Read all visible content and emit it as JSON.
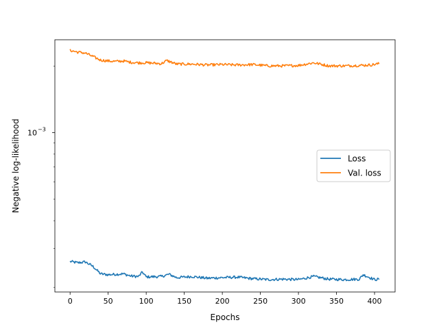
{
  "chart_data": {
    "type": "line",
    "title": "",
    "xlabel": "Epochs",
    "ylabel": "Negative log-likelihood",
    "xlim": [
      -20,
      427
    ],
    "ylim_log10": [
      -3.72,
      -2.58
    ],
    "y_scale": "log",
    "x_ticks": [
      0,
      50,
      100,
      150,
      200,
      250,
      300,
      350,
      400
    ],
    "x_tick_labels": [
      "0",
      "50",
      "100",
      "150",
      "200",
      "250",
      "300",
      "350",
      "400"
    ],
    "y_ticks": [
      -3
    ],
    "y_tick_labels": [
      "10",
      "−3"
    ],
    "grid": false,
    "legend_position": "center-right",
    "series": [
      {
        "name": "Loss",
        "color": "#1f77b4",
        "x": [
          0,
          10,
          20,
          30,
          40,
          50,
          60,
          70,
          80,
          90,
          95,
          100,
          120,
          130,
          140,
          160,
          180,
          200,
          220,
          240,
          260,
          280,
          300,
          320,
          340,
          360,
          380,
          385,
          400,
          406
        ],
        "log10_y": [
          -3.582,
          -3.588,
          -3.584,
          -3.604,
          -3.638,
          -3.642,
          -3.64,
          -3.638,
          -3.648,
          -3.65,
          -3.63,
          -3.652,
          -3.65,
          -3.64,
          -3.655,
          -3.65,
          -3.658,
          -3.655,
          -3.653,
          -3.66,
          -3.664,
          -3.662,
          -3.664,
          -3.65,
          -3.662,
          -3.664,
          -3.662,
          -3.642,
          -3.664,
          -3.662
        ]
      },
      {
        "name": "Val. loss",
        "color": "#ff7f0e",
        "x": [
          0,
          10,
          20,
          30,
          40,
          50,
          60,
          70,
          80,
          90,
          100,
          120,
          127,
          140,
          160,
          180,
          200,
          220,
          240,
          260,
          280,
          300,
          320,
          340,
          360,
          380,
          395,
          406
        ],
        "log10_y": [
          -2.628,
          -2.636,
          -2.64,
          -2.656,
          -2.672,
          -2.676,
          -2.678,
          -2.676,
          -2.682,
          -2.684,
          -2.684,
          -2.688,
          -2.674,
          -2.69,
          -2.69,
          -2.694,
          -2.692,
          -2.694,
          -2.692,
          -2.698,
          -2.698,
          -2.696,
          -2.684,
          -2.698,
          -2.698,
          -2.696,
          -2.694,
          -2.688
        ]
      }
    ]
  }
}
